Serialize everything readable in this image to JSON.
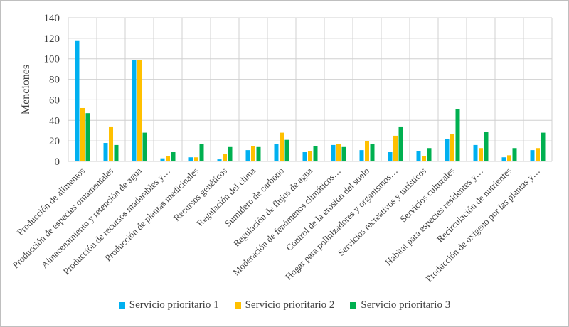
{
  "chart_data": {
    "type": "bar",
    "title": "",
    "xlabel": "",
    "ylabel": "Menciones",
    "ylim": [
      0,
      140
    ],
    "yticks": [
      0,
      20,
      40,
      60,
      80,
      100,
      120,
      140
    ],
    "grid": true,
    "legend_position": "bottom",
    "categories": [
      "Producción de alimentos",
      "Producción de especies ornamentales",
      "Almacenamiento y retención de agua",
      "Producción de recursos maderables y…",
      "Producción de plantas medicinales",
      "Recursos genéticos",
      "Regulación del clima",
      "Sumidero de carbono",
      "Regulación de flujos de agua",
      "Moderación de fenómenos climáticos…",
      "Control de la erosión del suelo",
      "Hogar para polinizadores y organismos…",
      "Servicios recreativos y turísticos",
      "Servicios culturales",
      "Habitat para especies residentes y…",
      "Recirculación de nutrientes",
      "Producción de oxigeno por las plantas y…"
    ],
    "series": [
      {
        "name": "Servicio prioritario 1",
        "color": "#00B0F0",
        "values": [
          118,
          18,
          99,
          3,
          4,
          2,
          11,
          17,
          9,
          16,
          11,
          9,
          10,
          22,
          16,
          4,
          11
        ]
      },
      {
        "name": "Servicio prioritario 2",
        "color": "#FFC000",
        "values": [
          52,
          34,
          99,
          5,
          4,
          7,
          15,
          28,
          10,
          17,
          20,
          25,
          5,
          27,
          13,
          6,
          13
        ]
      },
      {
        "name": "Servicio prioritario 3",
        "color": "#00B050",
        "values": [
          47,
          16,
          28,
          9,
          17,
          14,
          14,
          21,
          15,
          14,
          17,
          34,
          13,
          51,
          29,
          13,
          28
        ]
      }
    ]
  }
}
